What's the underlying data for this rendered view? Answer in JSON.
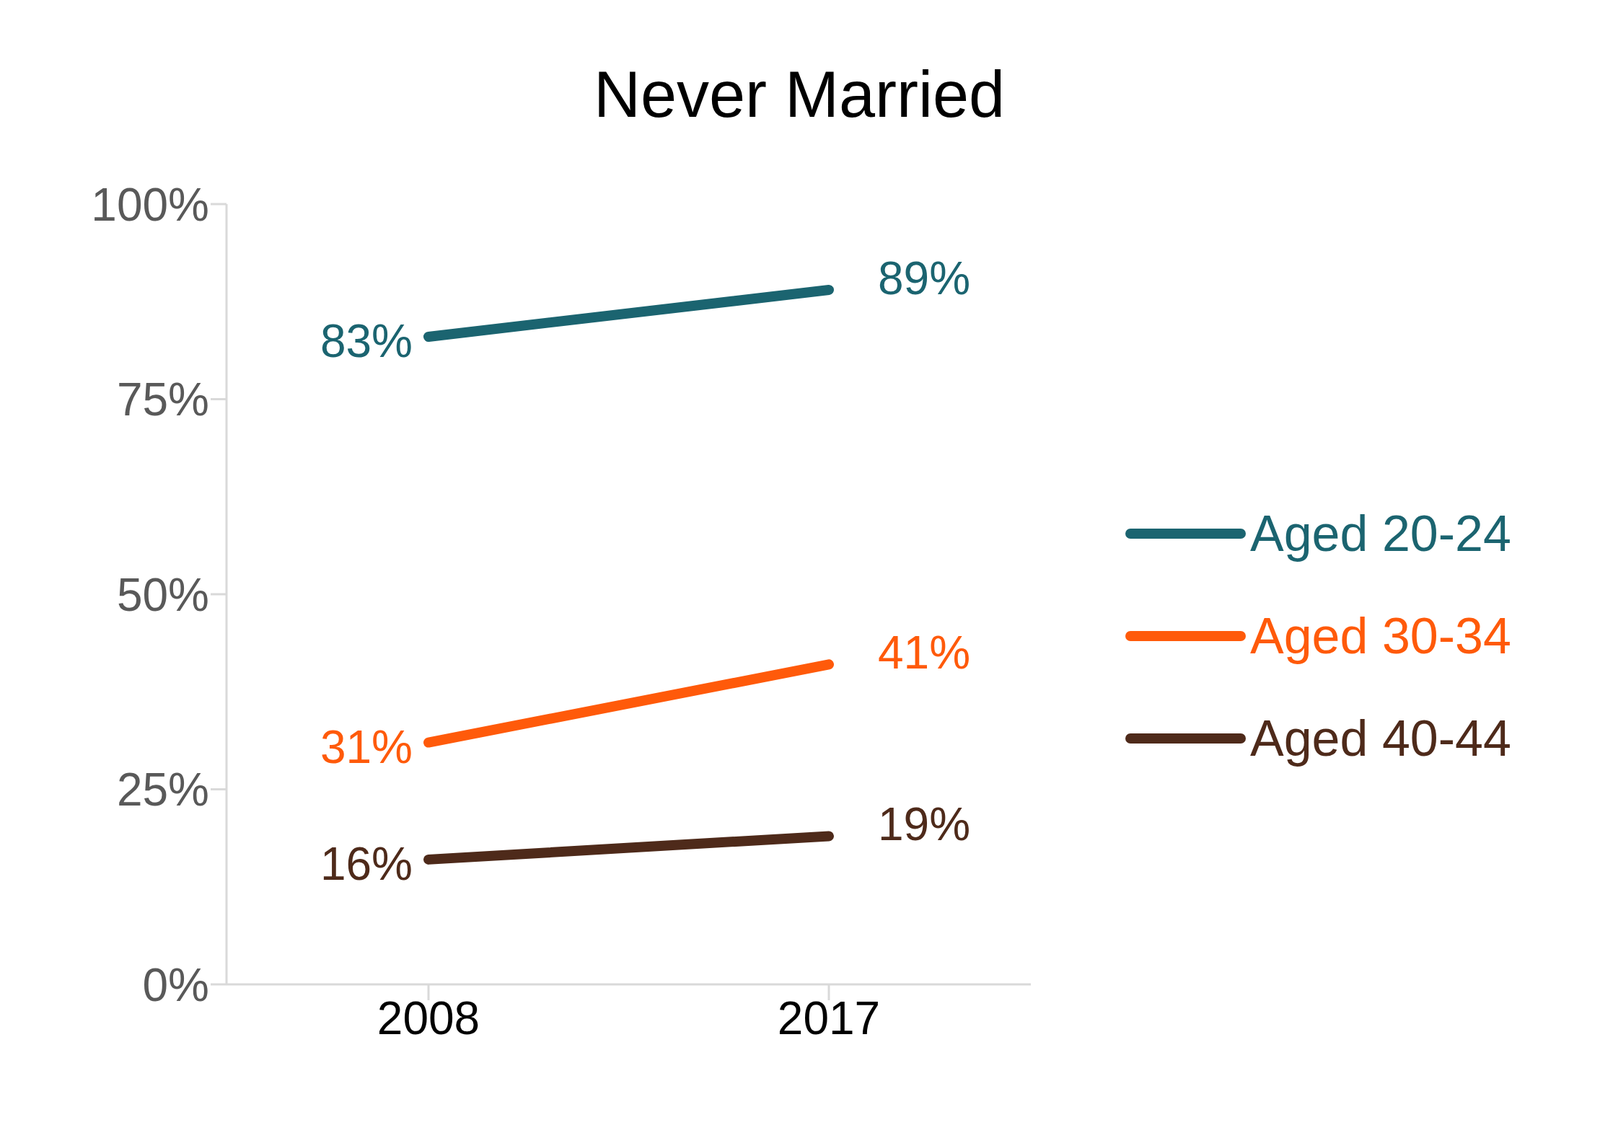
{
  "chart_data": {
    "type": "line",
    "title": "Never Married",
    "categories": [
      "2008",
      "2017"
    ],
    "series": [
      {
        "name": "Aged 20-24",
        "color": "#1b6470",
        "values": [
          83,
          89
        ],
        "value_labels": [
          "83%",
          "89%"
        ]
      },
      {
        "name": "Aged 30-34",
        "color": "#ff5a0a",
        "values": [
          31,
          41
        ],
        "value_labels": [
          "31%",
          "41%"
        ]
      },
      {
        "name": "Aged 40-44",
        "color": "#4e2a1a",
        "values": [
          16,
          19
        ],
        "value_labels": [
          "16%",
          "19%"
        ]
      }
    ],
    "ylim": [
      0,
      100
    ],
    "yticks": [
      {
        "value": 0,
        "label": "0%"
      },
      {
        "value": 25,
        "label": "25%"
      },
      {
        "value": 50,
        "label": "50%"
      },
      {
        "value": 75,
        "label": "75%"
      },
      {
        "value": 100,
        "label": "100%"
      }
    ],
    "grid": false,
    "legend": "right",
    "data_labels": true
  }
}
